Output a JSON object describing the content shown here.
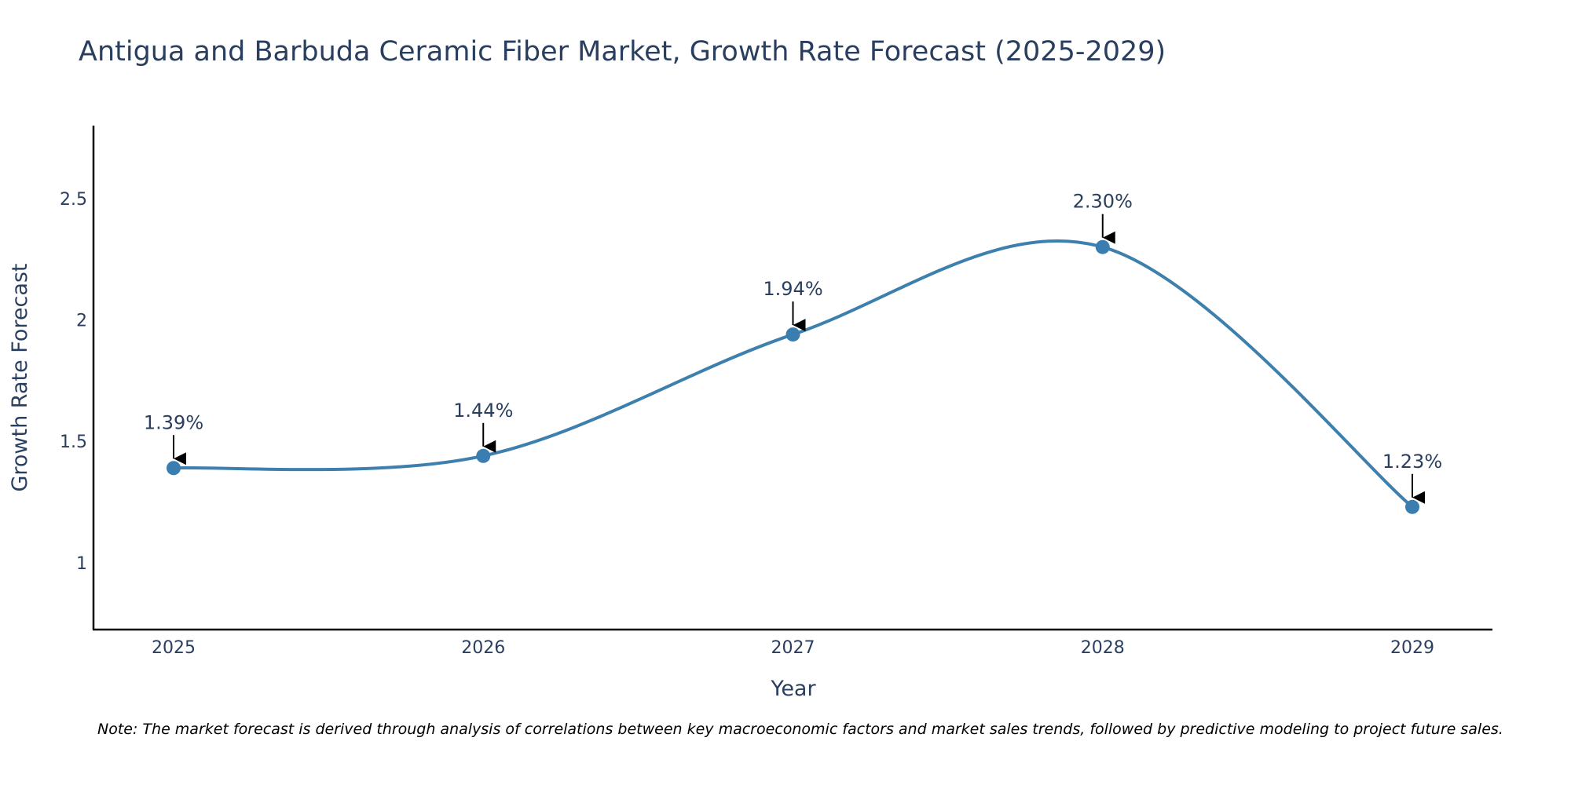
{
  "chart_data": {
    "type": "line",
    "title": "Antigua and Barbuda Ceramic Fiber Market, Growth Rate Forecast (2025-2029)",
    "xlabel": "Year",
    "ylabel": "Growth Rate Forecast",
    "categories": [
      "2025",
      "2026",
      "2027",
      "2028",
      "2029"
    ],
    "series": [
      {
        "name": "Growth Rate Forecast",
        "values": [
          1.39,
          1.44,
          1.94,
          2.3,
          1.23
        ]
      }
    ],
    "data_labels": [
      "1.39%",
      "1.44%",
      "1.94%",
      "2.30%",
      "1.23%"
    ],
    "yticks": [
      1,
      1.5,
      2,
      2.5
    ],
    "ytick_labels": [
      "1",
      "1.5",
      "2",
      "2.5"
    ],
    "ylim": [
      0.725,
      2.8
    ],
    "grid": false,
    "line_color": "#3d7fad",
    "marker_color": "#3a7db0",
    "note": "Note: The market forecast is derived through analysis of correlations between key macroeconomic factors and market sales trends, followed by predictive modeling to project future sales."
  }
}
